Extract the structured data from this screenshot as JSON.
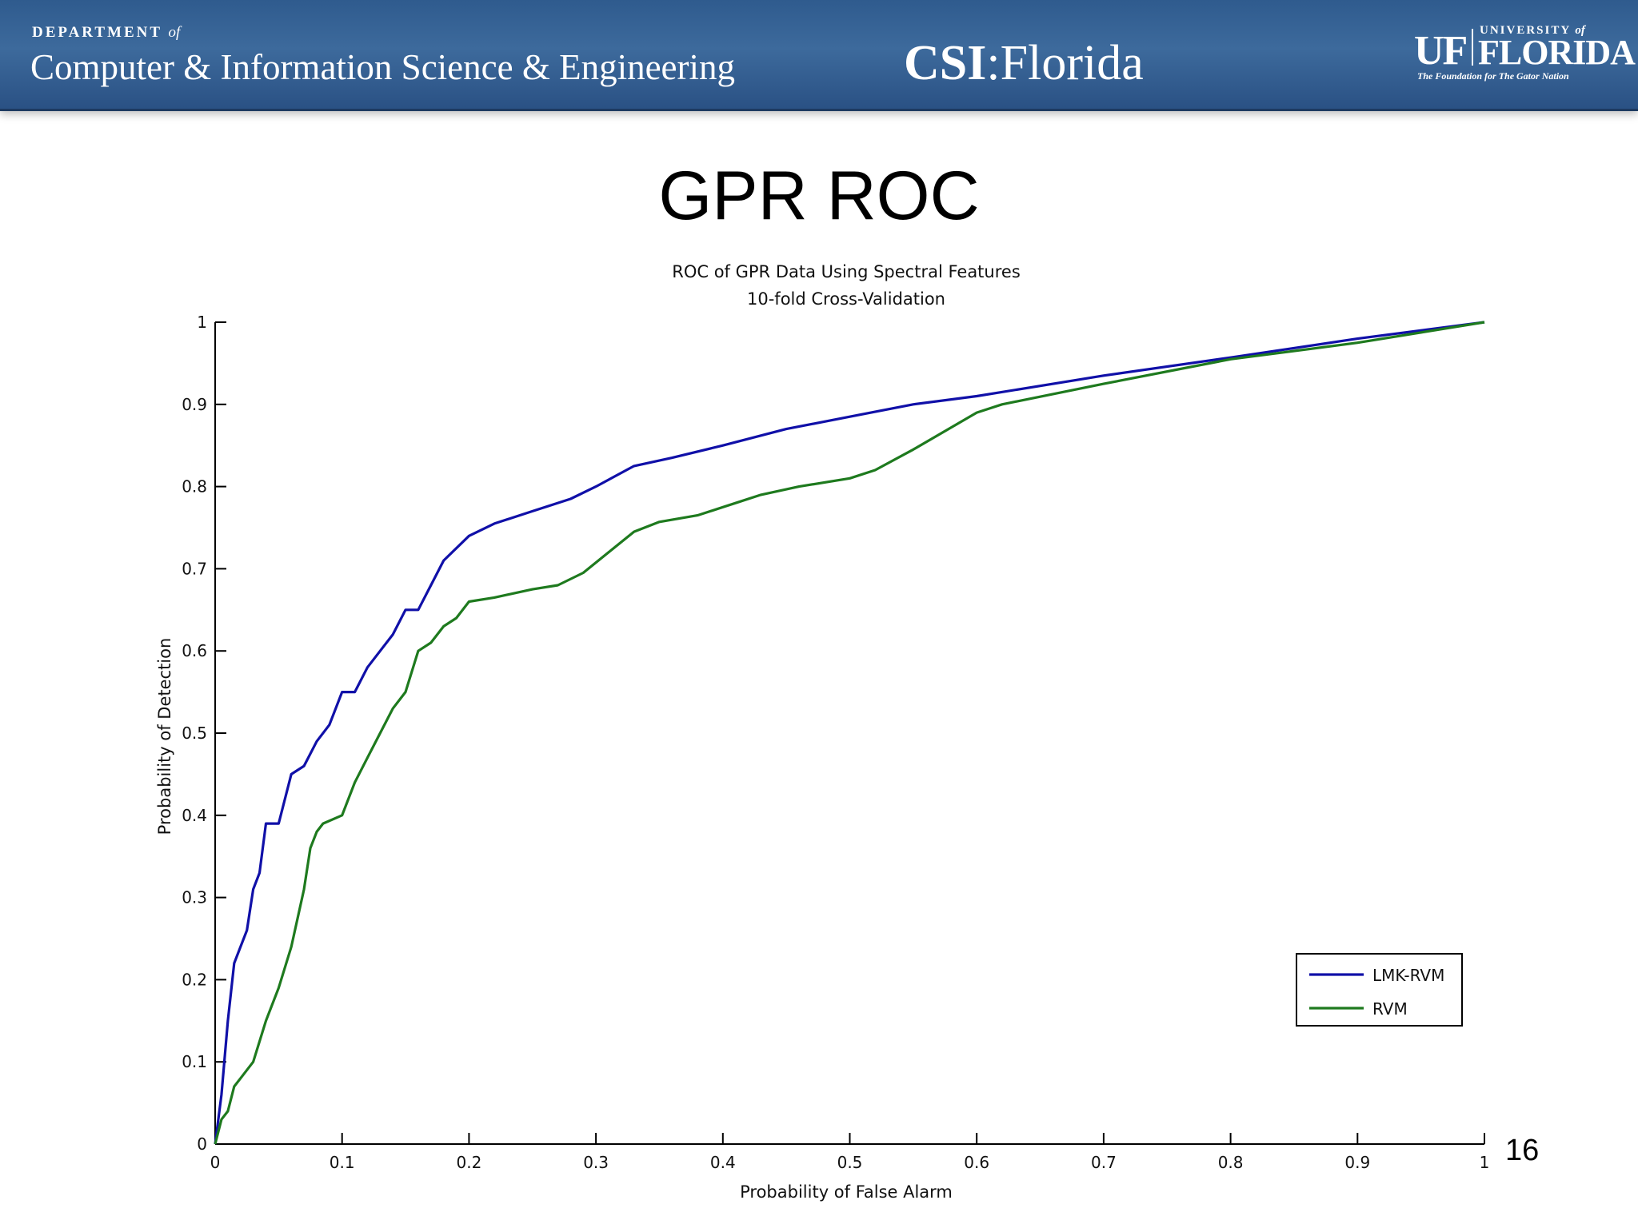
{
  "header": {
    "dept_small": "DEPARTMENT",
    "dept_small_of": "of",
    "dept_large": "Computer & Information Science & Engineering",
    "csi_bold": "CSI",
    "csi_rest": ":Florida",
    "uf_mark": "UF",
    "uf_university": "UNIVERSITY",
    "uf_of": "of",
    "uf_florida": "FLORIDA",
    "uf_tagline": "The Foundation for The Gator Nation"
  },
  "slide": {
    "title": "GPR ROC",
    "page_number": "16"
  },
  "chart_data": {
    "type": "line",
    "title": "ROC of GPR Data Using Spectral Features",
    "subtitle": "10-fold Cross-Validation",
    "xlabel": "Probability of False Alarm",
    "ylabel": "Probability of Detection",
    "xlim": [
      0,
      1
    ],
    "ylim": [
      0,
      1
    ],
    "xticks": [
      "0",
      "0.1",
      "0.2",
      "0.3",
      "0.4",
      "0.5",
      "0.6",
      "0.7",
      "0.8",
      "0.9",
      "1"
    ],
    "yticks": [
      "0",
      "0.1",
      "0.2",
      "0.3",
      "0.4",
      "0.5",
      "0.6",
      "0.7",
      "0.8",
      "0.9",
      "1"
    ],
    "grid": false,
    "legend_position": "bottom-right",
    "series": [
      {
        "name": "LMK-RVM",
        "color": "#1010a8",
        "points": [
          [
            0,
            0
          ],
          [
            0.005,
            0.06
          ],
          [
            0.01,
            0.15
          ],
          [
            0.015,
            0.22
          ],
          [
            0.02,
            0.24
          ],
          [
            0.025,
            0.26
          ],
          [
            0.03,
            0.31
          ],
          [
            0.035,
            0.33
          ],
          [
            0.04,
            0.39
          ],
          [
            0.05,
            0.39
          ],
          [
            0.06,
            0.45
          ],
          [
            0.07,
            0.46
          ],
          [
            0.08,
            0.49
          ],
          [
            0.09,
            0.51
          ],
          [
            0.1,
            0.55
          ],
          [
            0.11,
            0.55
          ],
          [
            0.12,
            0.58
          ],
          [
            0.13,
            0.6
          ],
          [
            0.14,
            0.62
          ],
          [
            0.15,
            0.65
          ],
          [
            0.16,
            0.65
          ],
          [
            0.17,
            0.68
          ],
          [
            0.18,
            0.71
          ],
          [
            0.2,
            0.74
          ],
          [
            0.22,
            0.755
          ],
          [
            0.25,
            0.77
          ],
          [
            0.28,
            0.785
          ],
          [
            0.3,
            0.8
          ],
          [
            0.33,
            0.825
          ],
          [
            0.36,
            0.835
          ],
          [
            0.4,
            0.85
          ],
          [
            0.45,
            0.87
          ],
          [
            0.5,
            0.885
          ],
          [
            0.55,
            0.9
          ],
          [
            0.6,
            0.91
          ],
          [
            0.7,
            0.935
          ],
          [
            0.8,
            0.957
          ],
          [
            0.9,
            0.98
          ],
          [
            1,
            1
          ]
        ]
      },
      {
        "name": "RVM",
        "color": "#1e7a1e",
        "points": [
          [
            0,
            0
          ],
          [
            0.005,
            0.03
          ],
          [
            0.01,
            0.04
          ],
          [
            0.015,
            0.07
          ],
          [
            0.02,
            0.08
          ],
          [
            0.03,
            0.1
          ],
          [
            0.04,
            0.15
          ],
          [
            0.05,
            0.19
          ],
          [
            0.06,
            0.24
          ],
          [
            0.07,
            0.31
          ],
          [
            0.075,
            0.36
          ],
          [
            0.08,
            0.38
          ],
          [
            0.085,
            0.39
          ],
          [
            0.1,
            0.4
          ],
          [
            0.11,
            0.44
          ],
          [
            0.12,
            0.47
          ],
          [
            0.13,
            0.5
          ],
          [
            0.14,
            0.53
          ],
          [
            0.15,
            0.55
          ],
          [
            0.16,
            0.6
          ],
          [
            0.17,
            0.61
          ],
          [
            0.18,
            0.63
          ],
          [
            0.19,
            0.64
          ],
          [
            0.2,
            0.66
          ],
          [
            0.22,
            0.665
          ],
          [
            0.25,
            0.675
          ],
          [
            0.27,
            0.68
          ],
          [
            0.29,
            0.695
          ],
          [
            0.31,
            0.72
          ],
          [
            0.33,
            0.745
          ],
          [
            0.35,
            0.757
          ],
          [
            0.38,
            0.765
          ],
          [
            0.41,
            0.78
          ],
          [
            0.43,
            0.79
          ],
          [
            0.46,
            0.8
          ],
          [
            0.5,
            0.81
          ],
          [
            0.52,
            0.82
          ],
          [
            0.55,
            0.845
          ],
          [
            0.6,
            0.89
          ],
          [
            0.62,
            0.9
          ],
          [
            0.7,
            0.925
          ],
          [
            0.8,
            0.955
          ],
          [
            0.9,
            0.975
          ],
          [
            1,
            1
          ]
        ]
      }
    ]
  }
}
